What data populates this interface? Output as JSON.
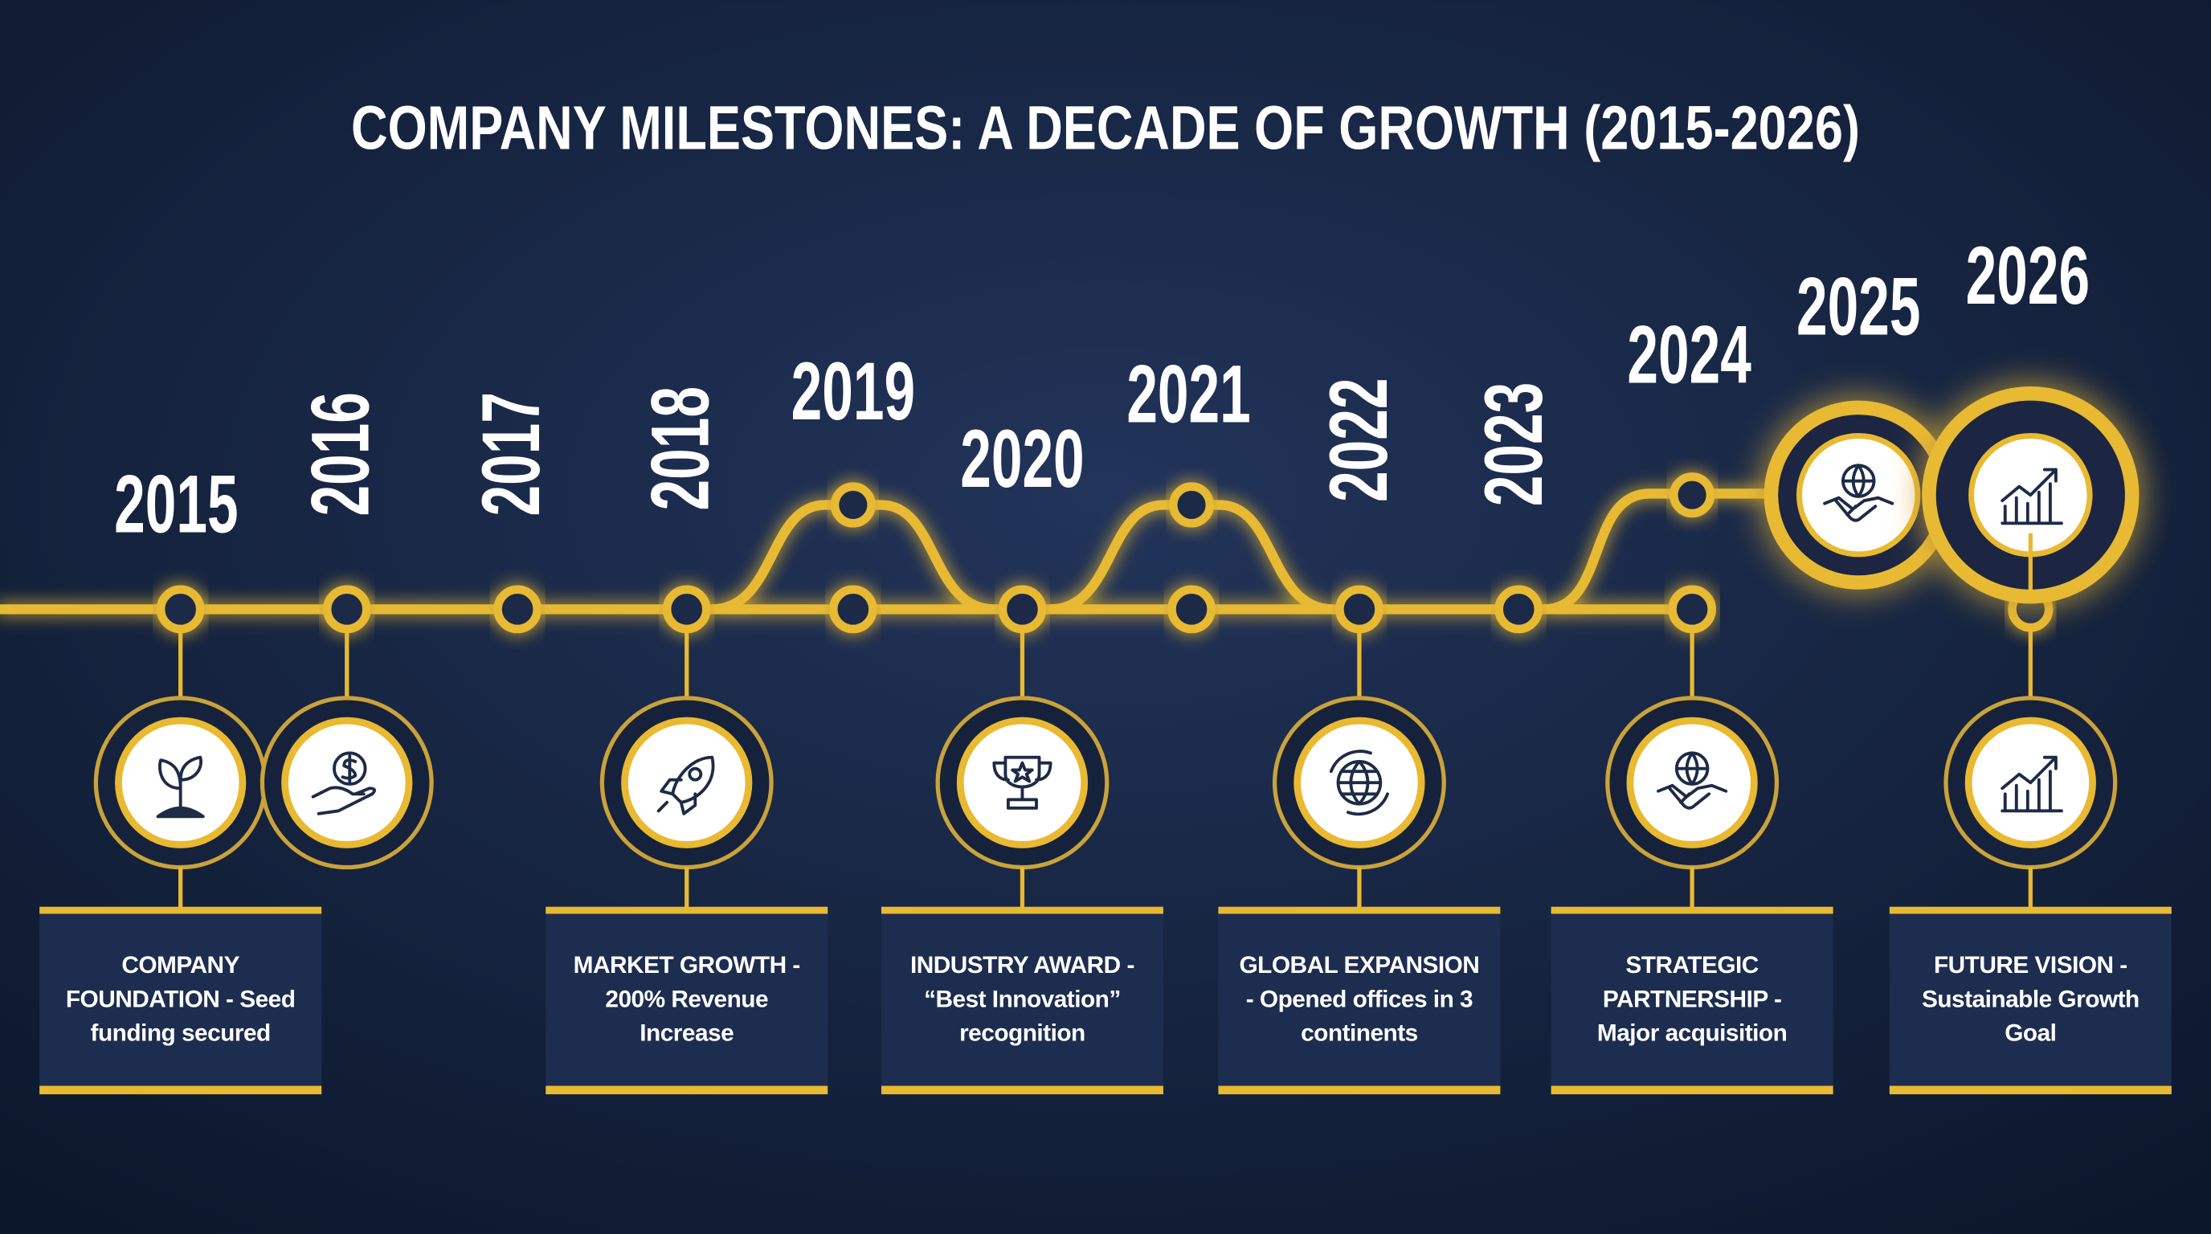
{
  "title": "COMPANY MILESTONES: A DECADE OF GROWTH (2015-2026)",
  "years": [
    "2015",
    "2016",
    "2017",
    "2018",
    "2019",
    "2020",
    "2021",
    "2022",
    "2023",
    "2024",
    "2025",
    "2026"
  ],
  "milestones": [
    "COMPANY FOUNDATION - Seed funding secured",
    "MARKET GROWTH - 200% Revenue Increase",
    "INDUSTRY AWARD - “Best Innovation” recognition",
    "GLOBAL EXPANSION - Opened offices in 3 continents",
    "STRATEGIC PARTNERSHIP - Major acquisition",
    "FUTURE VISION - Sustainable Growth Goal"
  ]
}
